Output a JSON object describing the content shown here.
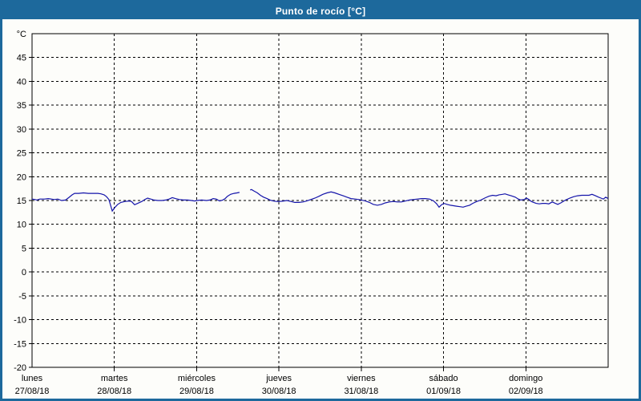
{
  "header": {
    "title": "Punto de rocío [°C]"
  },
  "colors": {
    "titlebar_bg": "#1d699c",
    "frame_border": "#1d699c",
    "title_text": "#ffffff",
    "page_bg": "#fdfdfa",
    "plot_border": "#000000",
    "grid": "#000000",
    "axis_text": "#000000",
    "line": "#1414aa"
  },
  "y_axis": {
    "unit_label": "°C",
    "ticks": [
      45,
      40,
      35,
      30,
      25,
      20,
      15,
      10,
      5,
      0,
      -5,
      -10,
      -15,
      -20
    ]
  },
  "x_axis": {
    "days": [
      {
        "name": "lunes",
        "date": "27/08/18"
      },
      {
        "name": "martes",
        "date": "28/08/18"
      },
      {
        "name": "miércoles",
        "date": "29/08/18"
      },
      {
        "name": "jueves",
        "date": "30/08/18"
      },
      {
        "name": "viernes",
        "date": "31/08/18"
      },
      {
        "name": "sábado",
        "date": "01/09/18"
      },
      {
        "name": "domingo",
        "date": "02/09/18"
      }
    ]
  },
  "chart_data": {
    "type": "line",
    "title": "Punto de rocío [°C]",
    "xlabel": "",
    "ylabel": "°C",
    "ylim": [
      -20,
      50
    ],
    "ytick_step": 5,
    "xlim_hours": [
      0,
      168
    ],
    "hours_per_day": 24,
    "grid": true,
    "legend": "none",
    "series": [
      {
        "name": "Punto de rocío",
        "unit": "°C",
        "segments": [
          [
            [
              0,
              15.3
            ],
            [
              0.9,
              15.2
            ],
            [
              1.4,
              15.1
            ],
            [
              2.3,
              15.3
            ],
            [
              3.7,
              15.3
            ],
            [
              4.7,
              15.4
            ],
            [
              5.6,
              15.3
            ],
            [
              6.5,
              15.2
            ],
            [
              7.5,
              15.3
            ],
            [
              8.6,
              15.0
            ],
            [
              9.8,
              15.1
            ],
            [
              10.7,
              15.6
            ],
            [
              11.7,
              16.2
            ],
            [
              12.4,
              16.5
            ],
            [
              13.6,
              16.5
            ],
            [
              15.0,
              16.6
            ],
            [
              16.4,
              16.5
            ],
            [
              17.8,
              16.5
            ],
            [
              19.2,
              16.5
            ],
            [
              20.1,
              16.4
            ],
            [
              21.0,
              16.2
            ],
            [
              21.7,
              15.8
            ],
            [
              22.4,
              15.2
            ],
            [
              22.9,
              14.0
            ],
            [
              23.4,
              12.8
            ],
            [
              24.1,
              13.5
            ],
            [
              25.0,
              14.2
            ],
            [
              25.9,
              14.6
            ],
            [
              27.1,
              14.8
            ],
            [
              28.3,
              14.9
            ],
            [
              29.0,
              14.8
            ],
            [
              29.9,
              14.1
            ],
            [
              30.8,
              14.4
            ],
            [
              32.0,
              14.8
            ],
            [
              32.9,
              15.2
            ],
            [
              33.7,
              15.5
            ],
            [
              34.6,
              15.3
            ],
            [
              35.5,
              15.1
            ],
            [
              36.7,
              15.0
            ],
            [
              37.9,
              15.0
            ],
            [
              39.0,
              15.1
            ],
            [
              40.0,
              15.3
            ],
            [
              40.9,
              15.6
            ],
            [
              41.8,
              15.4
            ],
            [
              43.0,
              15.2
            ],
            [
              44.2,
              15.1
            ],
            [
              45.3,
              15.1
            ],
            [
              46.5,
              15.0
            ],
            [
              47.4,
              14.9
            ],
            [
              48.1,
              15.0
            ],
            [
              49.5,
              15.1
            ],
            [
              50.9,
              15.0
            ],
            [
              51.9,
              15.1
            ],
            [
              52.8,
              15.4
            ],
            [
              53.7,
              15.3
            ],
            [
              54.7,
              14.9
            ],
            [
              55.6,
              15.1
            ],
            [
              56.3,
              15.4
            ],
            [
              57.0,
              15.9
            ],
            [
              57.9,
              16.3
            ],
            [
              58.9,
              16.5
            ],
            [
              59.8,
              16.6
            ],
            [
              60.5,
              16.7
            ]
          ],
          [
            [
              63.6,
              17.2
            ],
            [
              64.0,
              17.3
            ],
            [
              64.7,
              17.0
            ],
            [
              65.7,
              16.6
            ],
            [
              66.6,
              16.1
            ],
            [
              67.5,
              15.7
            ],
            [
              68.5,
              15.4
            ],
            [
              69.4,
              15.1
            ],
            [
              70.3,
              14.9
            ],
            [
              71.3,
              14.8
            ],
            [
              72.2,
              14.8
            ],
            [
              73.4,
              14.9
            ],
            [
              74.3,
              15.0
            ],
            [
              75.5,
              14.8
            ],
            [
              76.6,
              14.6
            ],
            [
              77.8,
              14.6
            ],
            [
              79.0,
              14.7
            ],
            [
              80.1,
              14.9
            ],
            [
              81.3,
              15.2
            ],
            [
              82.5,
              15.5
            ],
            [
              83.7,
              15.9
            ],
            [
              84.8,
              16.3
            ],
            [
              86.0,
              16.6
            ],
            [
              87.2,
              16.8
            ],
            [
              88.3,
              16.6
            ],
            [
              89.5,
              16.3
            ],
            [
              90.7,
              16.0
            ],
            [
              91.8,
              15.7
            ],
            [
              93.0,
              15.4
            ],
            [
              94.2,
              15.3
            ],
            [
              95.3,
              15.2
            ],
            [
              96.0,
              15.1
            ],
            [
              97.2,
              14.9
            ],
            [
              98.4,
              14.6
            ],
            [
              99.5,
              14.2
            ],
            [
              100.7,
              14.0
            ],
            [
              101.9,
              14.2
            ],
            [
              103.0,
              14.5
            ],
            [
              104.2,
              14.7
            ],
            [
              105.4,
              14.8
            ],
            [
              106.5,
              14.7
            ],
            [
              107.7,
              14.7
            ],
            [
              108.9,
              14.9
            ],
            [
              110.1,
              15.1
            ],
            [
              111.2,
              15.2
            ],
            [
              112.4,
              15.3
            ],
            [
              113.6,
              15.4
            ],
            [
              114.7,
              15.4
            ],
            [
              115.9,
              15.3
            ],
            [
              117.1,
              14.9
            ],
            [
              118.0,
              14.3
            ],
            [
              118.7,
              13.6
            ],
            [
              119.4,
              14.1
            ],
            [
              120.1,
              14.4
            ],
            [
              121.0,
              14.2
            ],
            [
              122.0,
              14.0
            ],
            [
              122.9,
              13.9
            ],
            [
              123.8,
              13.8
            ],
            [
              124.8,
              13.7
            ],
            [
              125.7,
              13.6
            ],
            [
              126.6,
              13.8
            ],
            [
              127.6,
              14.0
            ],
            [
              128.5,
              14.4
            ],
            [
              129.7,
              14.8
            ],
            [
              130.9,
              15.1
            ],
            [
              132.0,
              15.5
            ],
            [
              133.2,
              15.9
            ],
            [
              134.3,
              16.1
            ],
            [
              135.3,
              16.0
            ],
            [
              136.2,
              16.2
            ],
            [
              137.2,
              16.3
            ],
            [
              137.9,
              16.4
            ],
            [
              138.8,
              16.2
            ],
            [
              139.7,
              16.0
            ],
            [
              140.9,
              15.7
            ],
            [
              141.8,
              15.3
            ],
            [
              142.5,
              15.1
            ],
            [
              143.5,
              15.2
            ],
            [
              144.2,
              15.5
            ],
            [
              144.9,
              15.2
            ],
            [
              145.6,
              14.8
            ],
            [
              146.3,
              14.6
            ],
            [
              147.0,
              14.4
            ],
            [
              147.9,
              14.3
            ],
            [
              148.8,
              14.4
            ],
            [
              149.8,
              14.4
            ],
            [
              150.7,
              14.3
            ],
            [
              151.7,
              14.7
            ],
            [
              152.6,
              14.4
            ],
            [
              153.3,
              14.2
            ],
            [
              154.2,
              14.5
            ],
            [
              155.6,
              15.1
            ],
            [
              156.8,
              15.5
            ],
            [
              158.0,
              15.8
            ],
            [
              159.1,
              16.0
            ],
            [
              160.3,
              16.1
            ],
            [
              161.5,
              16.1
            ],
            [
              162.4,
              16.1
            ],
            [
              163.3,
              16.3
            ],
            [
              164.3,
              16.0
            ],
            [
              165.2,
              15.7
            ],
            [
              165.9,
              15.5
            ],
            [
              166.6,
              15.3
            ],
            [
              167.3,
              15.7
            ],
            [
              168,
              15.4
            ]
          ]
        ]
      }
    ]
  }
}
